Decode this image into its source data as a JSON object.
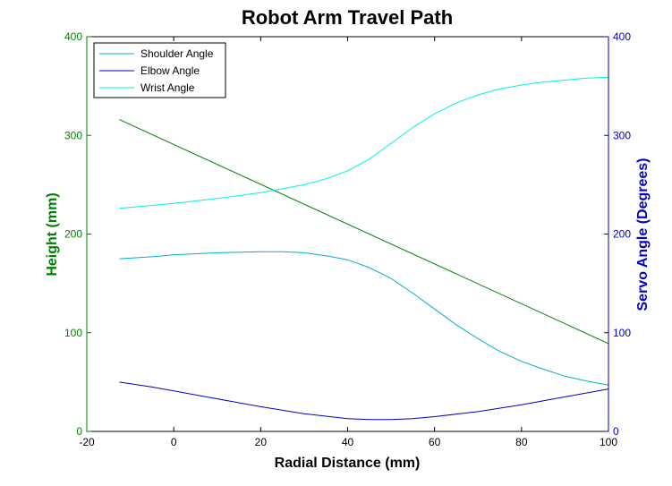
{
  "chart_data": {
    "type": "line",
    "title": "Robot Arm Travel Path",
    "xlabel": "Radial Distance (mm)",
    "ylabel_left": "Height (mm)",
    "ylabel_right": "Servo Angle (Degrees)",
    "xlim": [
      -20,
      100
    ],
    "ylim_left": [
      0,
      400
    ],
    "ylim_right": [
      0,
      400
    ],
    "x_ticks": [
      "-20",
      "0",
      "20",
      "40",
      "60",
      "80",
      "100"
    ],
    "y_ticks_left": [
      "0",
      "100",
      "200",
      "300",
      "400"
    ],
    "y_ticks_right": [
      "0",
      "100",
      "200",
      "300",
      "400"
    ],
    "grid": false,
    "legend_position": "top-left",
    "colors": {
      "left_axis": "#008000",
      "right_axis": "#0000c8"
    },
    "series": [
      {
        "name": "Height",
        "axis": "left",
        "color": "#008000",
        "in_legend": false,
        "x": [
          -12.5,
          100
        ],
        "y": [
          316,
          89
        ]
      },
      {
        "name": "Shoulder Angle",
        "axis": "right",
        "color": "#00b0c8",
        "in_legend": true,
        "x": [
          -12.5,
          -5,
          0,
          10,
          20,
          25,
          30,
          35,
          40,
          45,
          50,
          55,
          60,
          65,
          70,
          75,
          80,
          85,
          90,
          95,
          100
        ],
        "y": [
          175,
          177,
          179,
          181,
          182,
          182,
          181,
          178,
          174,
          166,
          155,
          140,
          124,
          108,
          94,
          81,
          71,
          63,
          56,
          51,
          47
        ]
      },
      {
        "name": "Elbow Angle",
        "axis": "right",
        "color": "#0000c8",
        "in_legend": true,
        "x": [
          -12.5,
          -5,
          0,
          10,
          20,
          30,
          40,
          45,
          50,
          55,
          60,
          70,
          80,
          90,
          100
        ],
        "y": [
          50,
          45,
          41,
          33,
          25,
          18,
          13,
          12,
          12,
          13,
          15,
          20,
          27,
          35,
          43
        ]
      },
      {
        "name": "Wrist Angle",
        "axis": "right",
        "color": "#00f0f0",
        "in_legend": true,
        "x": [
          -12.5,
          -5,
          0,
          10,
          20,
          30,
          35,
          40,
          45,
          50,
          55,
          60,
          65,
          70,
          75,
          80,
          85,
          90,
          95,
          100
        ],
        "y": [
          226,
          229,
          231,
          236,
          242,
          250,
          256,
          264,
          276,
          292,
          308,
          322,
          333,
          341,
          347,
          351,
          354,
          356,
          358,
          359
        ]
      }
    ]
  }
}
